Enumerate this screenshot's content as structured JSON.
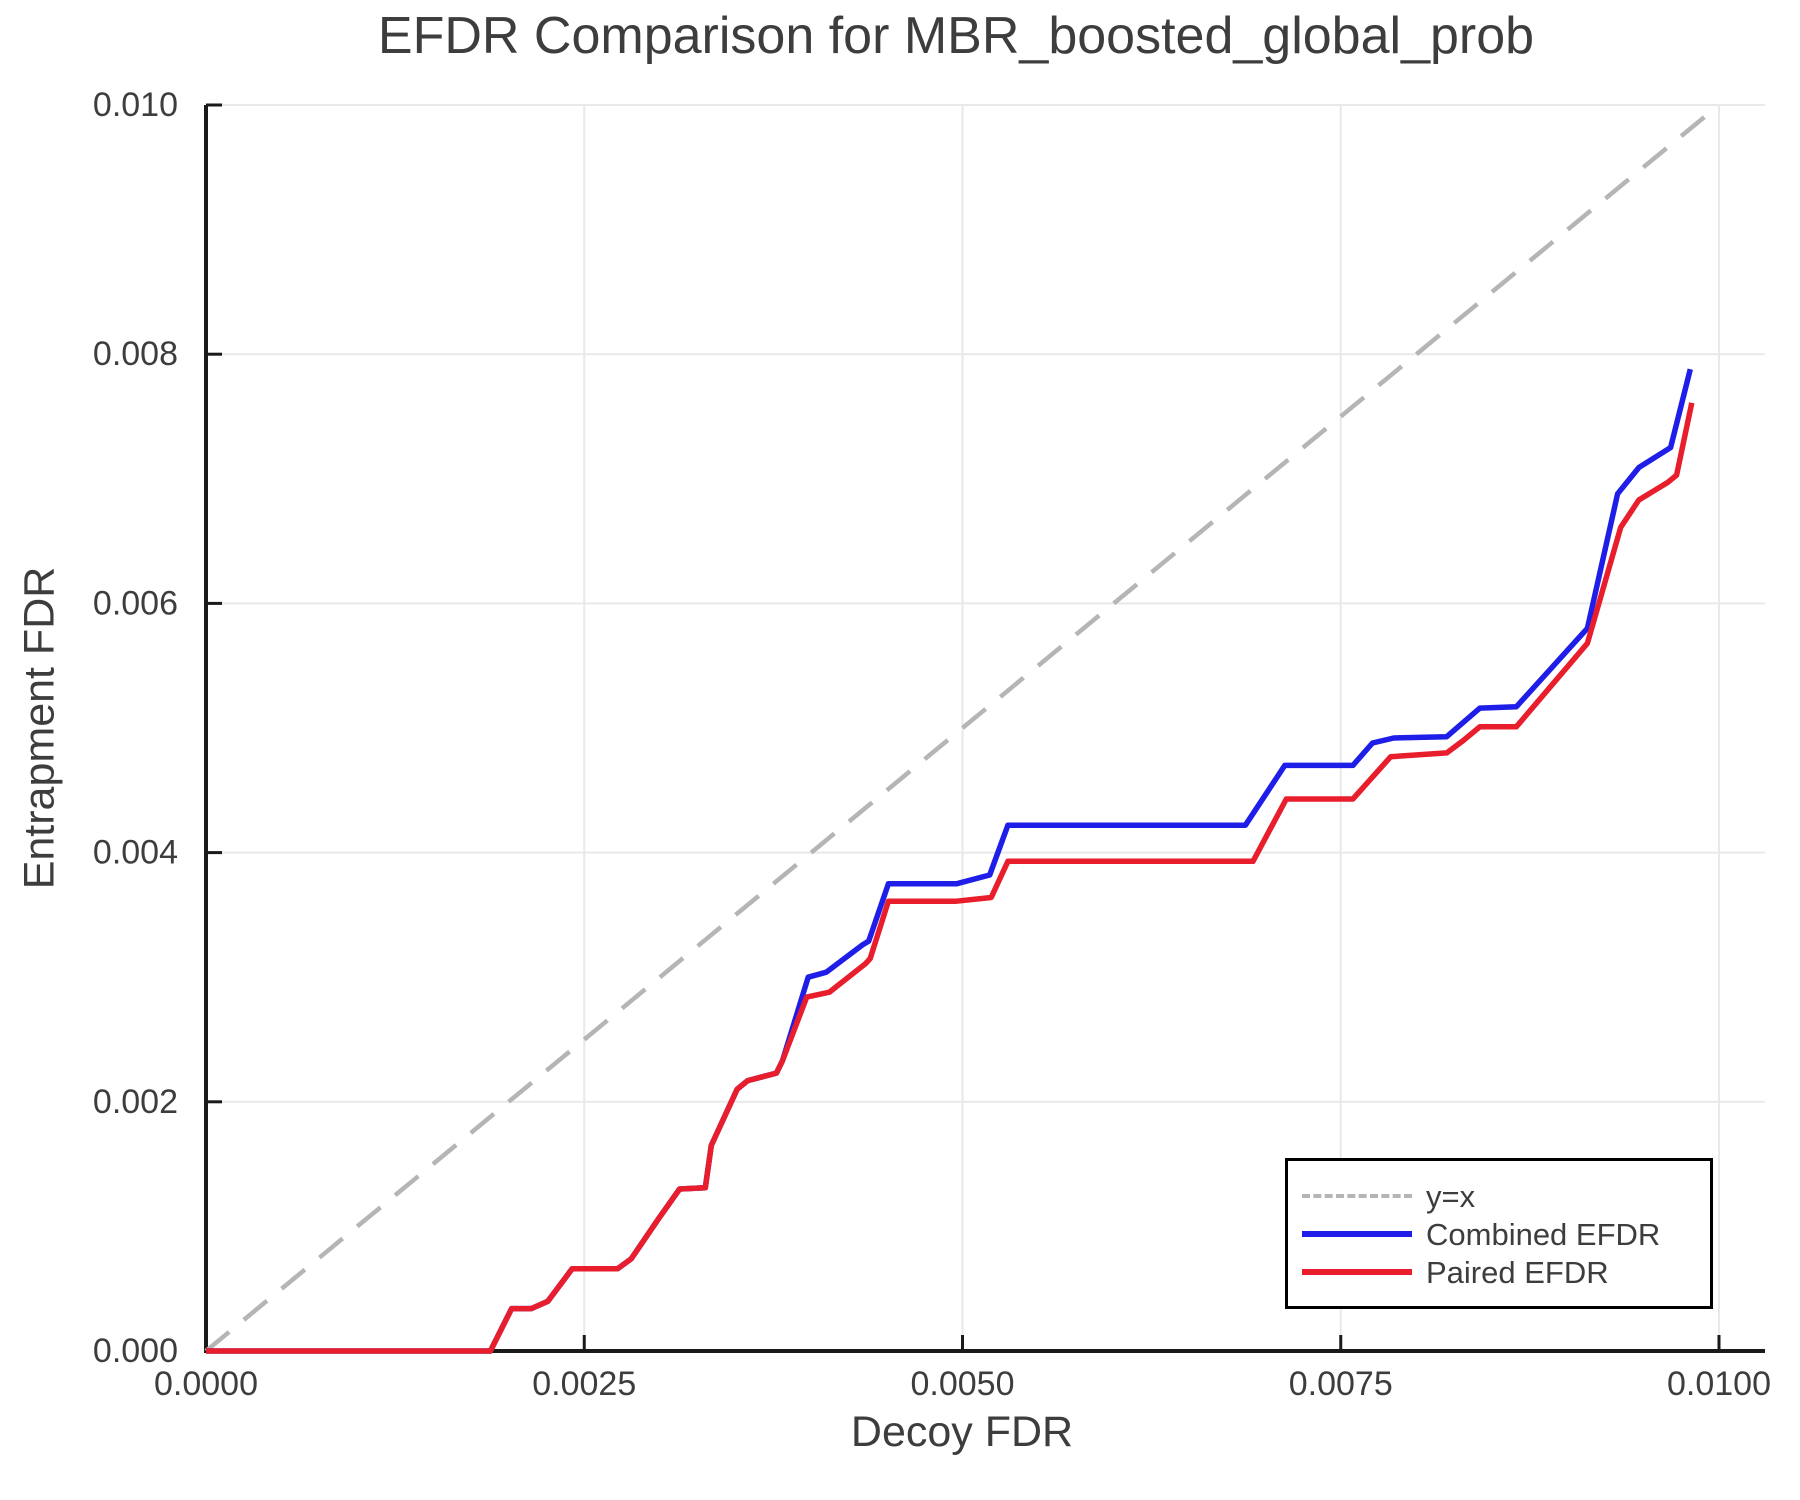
{
  "chart_data": {
    "type": "line",
    "title": "EFDR Comparison for MBR_boosted_global_prob",
    "xlabel": "Decoy FDR",
    "ylabel": "Entrapment FDR",
    "xlim": [
      0,
      0.0103
    ],
    "ylim": [
      0,
      0.01
    ],
    "grid": true,
    "legend_position": "lower right",
    "x_ticks": {
      "values": [
        0.0,
        0.0025,
        0.005,
        0.0075,
        0.01
      ],
      "labels": [
        "0.0000",
        "0.0025",
        "0.0050",
        "0.0075",
        "0.0100"
      ]
    },
    "y_ticks": {
      "values": [
        0.0,
        0.002,
        0.004,
        0.006,
        0.008,
        0.01
      ],
      "labels": [
        "0.000",
        "0.002",
        "0.004",
        "0.006",
        "0.008",
        "0.010"
      ]
    },
    "colors": {
      "grid": "#e9e9e9",
      "spine": "#1a1a1a",
      "tick": "#1a1a1a",
      "text": "#3d3d3d",
      "background": "#ffffff"
    },
    "series": [
      {
        "name": "y=x",
        "color": "#b5b5b5",
        "style": "dashed",
        "points": [
          [
            0.0,
            0.0
          ],
          [
            0.01,
            0.01
          ]
        ]
      },
      {
        "name": "Combined EFDR",
        "color": "#1e1ee8",
        "style": "solid",
        "points": [
          [
            0.0,
            0.0
          ],
          [
            0.00188,
            0.0
          ],
          [
            0.00202,
            0.00034
          ],
          [
            0.00215,
            0.00034
          ],
          [
            0.00226,
            0.0004
          ],
          [
            0.00242,
            0.00066
          ],
          [
            0.00272,
            0.00066
          ],
          [
            0.00281,
            0.00074
          ],
          [
            0.00299,
            0.00106
          ],
          [
            0.00313,
            0.0013
          ],
          [
            0.0033,
            0.00131
          ],
          [
            0.00334,
            0.00165
          ],
          [
            0.00351,
            0.0021
          ],
          [
            0.00358,
            0.00217
          ],
          [
            0.00377,
            0.00223
          ],
          [
            0.00381,
            0.00233
          ],
          [
            0.00398,
            0.003
          ],
          [
            0.0041,
            0.00304
          ],
          [
            0.00434,
            0.00326
          ],
          [
            0.00438,
            0.00329
          ],
          [
            0.00451,
            0.00375
          ],
          [
            0.00496,
            0.00375
          ],
          [
            0.00518,
            0.00382
          ],
          [
            0.0053,
            0.00422
          ],
          [
            0.00687,
            0.00422
          ],
          [
            0.00713,
            0.0047
          ],
          [
            0.00758,
            0.0047
          ],
          [
            0.00771,
            0.00488
          ],
          [
            0.00785,
            0.00492
          ],
          [
            0.0082,
            0.00493
          ],
          [
            0.00842,
            0.00516
          ],
          [
            0.00866,
            0.00517
          ],
          [
            0.00913,
            0.0058
          ],
          [
            0.00933,
            0.00688
          ],
          [
            0.00947,
            0.00709
          ],
          [
            0.00968,
            0.00725
          ],
          [
            0.00981,
            0.00788
          ]
        ]
      },
      {
        "name": "Paired EFDR",
        "color": "#e81e2c",
        "style": "solid",
        "points": [
          [
            0.0,
            0.0
          ],
          [
            0.00188,
            0.0
          ],
          [
            0.00202,
            0.00034
          ],
          [
            0.00215,
            0.00034
          ],
          [
            0.00226,
            0.0004
          ],
          [
            0.00242,
            0.00066
          ],
          [
            0.00272,
            0.00066
          ],
          [
            0.00281,
            0.00074
          ],
          [
            0.00299,
            0.00106
          ],
          [
            0.00313,
            0.0013
          ],
          [
            0.0033,
            0.00131
          ],
          [
            0.00334,
            0.00165
          ],
          [
            0.00351,
            0.0021
          ],
          [
            0.00358,
            0.00217
          ],
          [
            0.00377,
            0.00223
          ],
          [
            0.00381,
            0.00233
          ],
          [
            0.00397,
            0.00284
          ],
          [
            0.00412,
            0.00288
          ],
          [
            0.00436,
            0.00311
          ],
          [
            0.00439,
            0.00315
          ],
          [
            0.00451,
            0.00361
          ],
          [
            0.00496,
            0.00361
          ],
          [
            0.00519,
            0.00364
          ],
          [
            0.0053,
            0.00393
          ],
          [
            0.00692,
            0.00393
          ],
          [
            0.00714,
            0.00443
          ],
          [
            0.00758,
            0.00443
          ],
          [
            0.00783,
            0.00477
          ],
          [
            0.0082,
            0.0048
          ],
          [
            0.00831,
            0.0049
          ],
          [
            0.00842,
            0.00501
          ],
          [
            0.00866,
            0.00501
          ],
          [
            0.00913,
            0.00568
          ],
          [
            0.00935,
            0.00661
          ],
          [
            0.00947,
            0.00683
          ],
          [
            0.00966,
            0.00697
          ],
          [
            0.00972,
            0.00703
          ],
          [
            0.00982,
            0.00761
          ]
        ]
      }
    ]
  }
}
